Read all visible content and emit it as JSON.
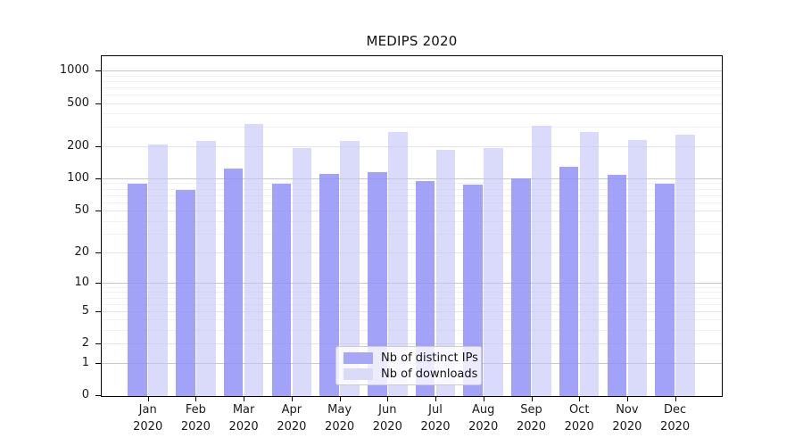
{
  "chart_data": {
    "type": "bar",
    "title": "MEDIPS 2020",
    "categories": [
      "Jan",
      "Feb",
      "Mar",
      "Apr",
      "May",
      "Jun",
      "Jul",
      "Aug",
      "Sep",
      "Oct",
      "Nov",
      "Dec"
    ],
    "year_label": "2020",
    "series": [
      {
        "name": "Nb of distinct IPs",
        "legend_color": "#a7a7f7",
        "bar_fill": "rgba(142,142,246,0.82)",
        "values": [
          89,
          78,
          124,
          89,
          109,
          114,
          95,
          87,
          100,
          128,
          108,
          89
        ]
      },
      {
        "name": "Nb of downloads",
        "legend_color": "#dadaf9",
        "bar_fill": "rgba(196,196,248,0.62)",
        "values": [
          207,
          221,
          320,
          192,
          221,
          269,
          183,
          192,
          311,
          268,
          226,
          255
        ]
      }
    ],
    "yscale": "symlog ln(1+v)",
    "yticks": [
      0,
      1,
      2,
      5,
      10,
      20,
      50,
      100,
      200,
      500,
      1000
    ],
    "ylim": [
      0,
      1400
    ],
    "grid": "horizontal with log minor lines",
    "legend_position": "lower center inside plot"
  },
  "colors": {
    "grid_major": "#c8c8c8",
    "grid_mid": "#e4e4e8",
    "grid_minor": "#f1f1f5",
    "axis": "#000000",
    "text": "#1a1a1a"
  }
}
